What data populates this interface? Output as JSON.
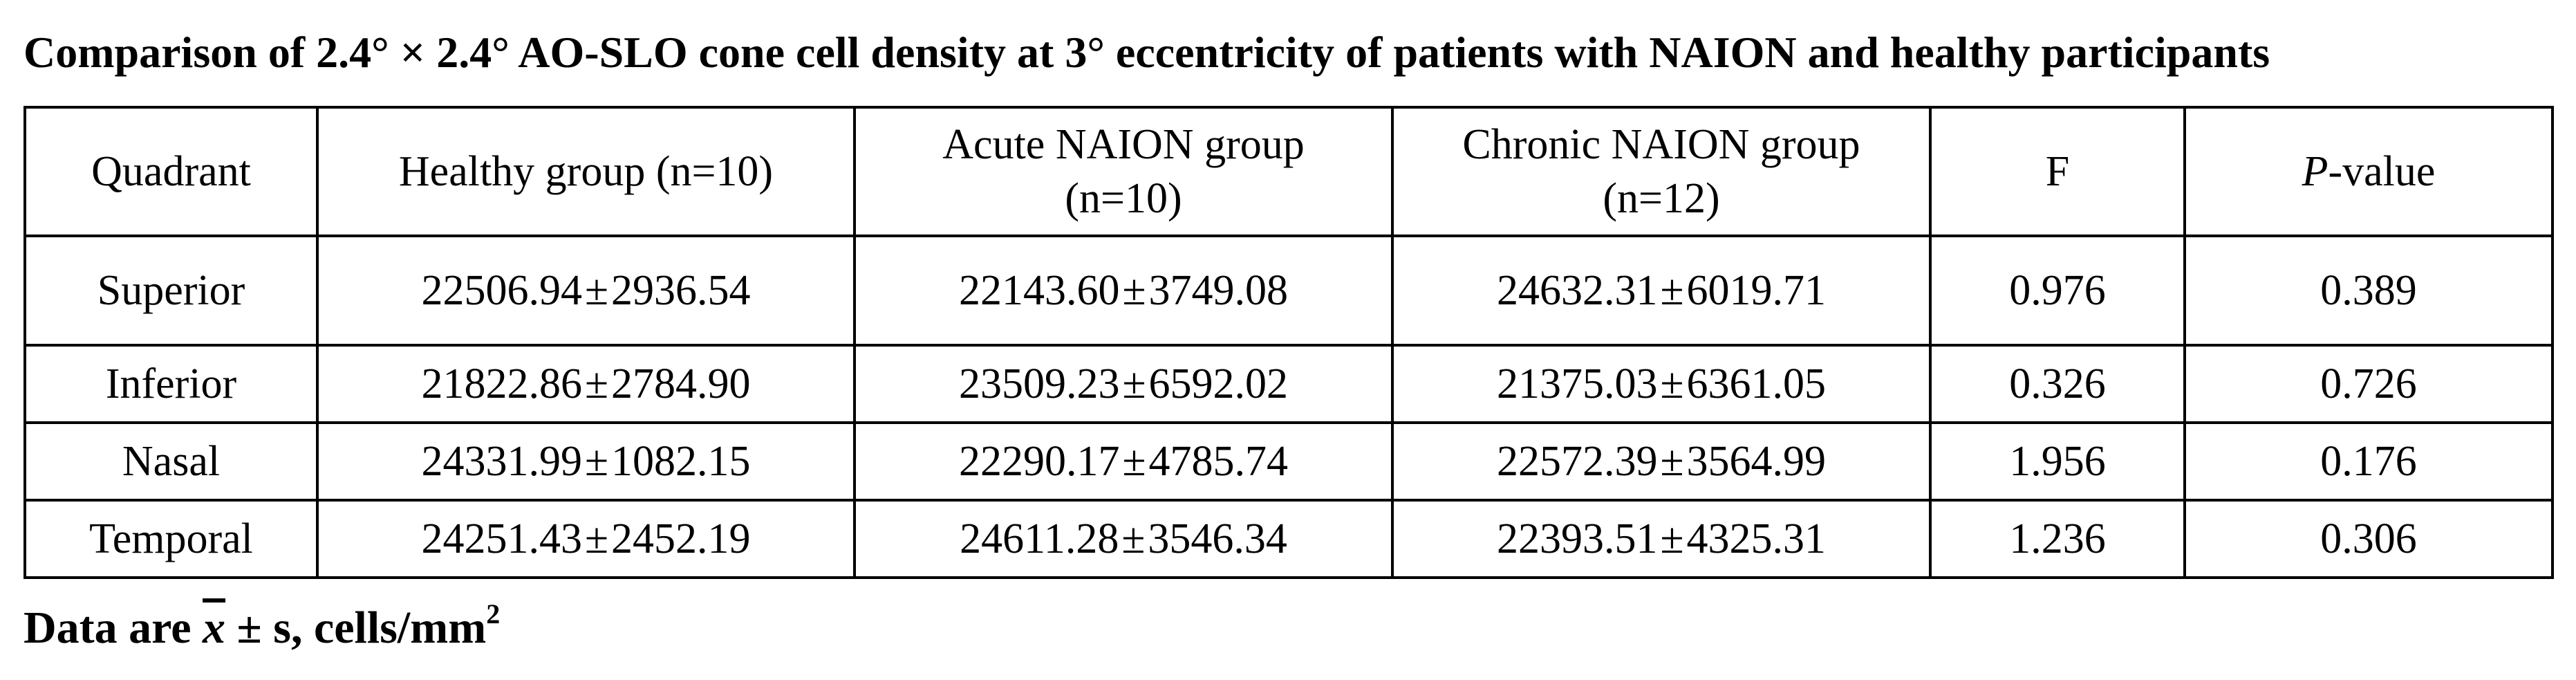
{
  "title": "Comparison of 2.4° × 2.4° AO-SLO cone cell density at 3° eccentricity of patients with NAION and healthy participants",
  "table": {
    "headers": {
      "quadrant": "Quadrant",
      "healthy": "Healthy group (n=10)",
      "acute_line1": "Acute NAION group",
      "acute_line2": "(n=10)",
      "chronic_line1": "Chronic NAION group",
      "chronic_line2": "(n=12)",
      "f": "F",
      "p_italic": "P",
      "p_rest": "-value"
    },
    "rows": [
      {
        "quadrant": "Superior",
        "healthy_mean": "22506.94",
        "healthy_sd": "2936.54",
        "acute_mean": "22143.60",
        "acute_sd": "3749.08",
        "chronic_mean": "24632.31",
        "chronic_sd": "6019.71",
        "f": "0.976",
        "p": "0.389"
      },
      {
        "quadrant": "Inferior",
        "healthy_mean": "21822.86",
        "healthy_sd": "2784.90",
        "acute_mean": "23509.23",
        "acute_sd": "6592.02",
        "chronic_mean": "21375.03",
        "chronic_sd": "6361.05",
        "f": "0.326",
        "p": "0.726"
      },
      {
        "quadrant": "Nasal",
        "healthy_mean": "24331.99",
        "healthy_sd": "1082.15",
        "acute_mean": "22290.17",
        "acute_sd": "4785.74",
        "chronic_mean": "22572.39",
        "chronic_sd": "3564.99",
        "f": "1.956",
        "p": "0.176"
      },
      {
        "quadrant": "Temporal",
        "healthy_mean": "24251.43",
        "healthy_sd": "2452.19",
        "acute_mean": "24611.28",
        "acute_sd": "3546.34",
        "chronic_mean": "22393.51",
        "chronic_sd": "4325.31",
        "f": "1.236",
        "p": "0.306"
      }
    ]
  },
  "footnote": {
    "prefix": "Data are ",
    "symbol": "x",
    "pm": "±",
    "rest": " s, cells/mm",
    "superscript": "2"
  }
}
